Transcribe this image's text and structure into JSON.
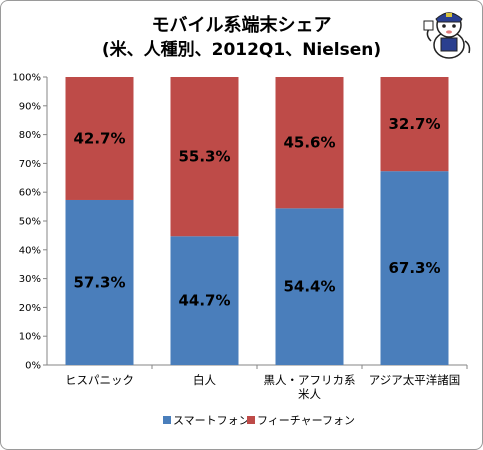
{
  "chart_data": {
    "type": "bar",
    "stacked": true,
    "title": "モバイル系端末シェア",
    "subtitle": "(米、人種別、2012Q1、Nielsen)",
    "categories": [
      [
        "ヒスパニック"
      ],
      [
        "白人"
      ],
      [
        "黒人・アフリカ系",
        "米人"
      ],
      [
        "アジア太平洋諸国"
      ]
    ],
    "series": [
      {
        "name": "スマートフォン",
        "color": "#4a7ebb",
        "values": [
          57.3,
          44.7,
          54.4,
          67.3
        ]
      },
      {
        "name": "フィーチャーフォン",
        "color": "#be4b48",
        "values": [
          42.7,
          55.3,
          45.6,
          32.7
        ]
      }
    ],
    "data_labels": [
      [
        "57.3%",
        "44.7%",
        "54.4%",
        "67.3%"
      ],
      [
        "42.7%",
        "55.3%",
        "45.6%",
        "32.7%"
      ]
    ],
    "y_ticks": [
      "0%",
      "10%",
      "20%",
      "30%",
      "40%",
      "50%",
      "60%",
      "70%",
      "80%",
      "90%",
      "100%"
    ],
    "ylim": [
      0,
      100
    ],
    "grid": false,
    "legend": "bottom"
  }
}
